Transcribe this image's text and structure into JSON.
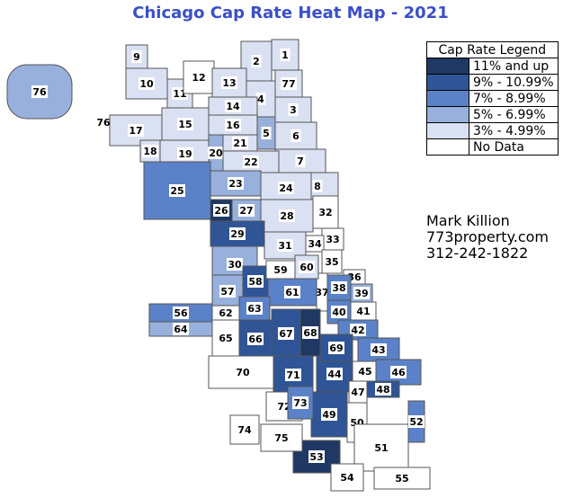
{
  "title": "Chicago Cap Rate Heat Map - 2021",
  "legend": {
    "title": "Cap Rate Legend",
    "items": [
      {
        "label": "11% and up",
        "color": "#1f3864"
      },
      {
        "label": "9% - 10.99%",
        "color": "#2f5597"
      },
      {
        "label": "7% - 8.99%",
        "color": "#5b82c8"
      },
      {
        "label": "5% - 6.99%",
        "color": "#98b0dc"
      },
      {
        "label": "3% - 4.99%",
        "color": "#dae1f2"
      },
      {
        "label": "No Data",
        "color": "#ffffff"
      }
    ]
  },
  "contact": {
    "name": "Mark Killion",
    "website": "773property.com",
    "phone": "312-242-1822"
  },
  "areas": [
    {
      "id": "1",
      "level": "3% - 4.99%"
    },
    {
      "id": "2",
      "level": "3% - 4.99%"
    },
    {
      "id": "3",
      "level": "3% - 4.99%"
    },
    {
      "id": "4",
      "level": "3% - 4.99%"
    },
    {
      "id": "5",
      "level": "5% - 6.99%"
    },
    {
      "id": "6",
      "level": "3% - 4.99%"
    },
    {
      "id": "7",
      "level": "3% - 4.99%"
    },
    {
      "id": "8",
      "level": "3% - 4.99%"
    },
    {
      "id": "9",
      "level": "3% - 4.99%"
    },
    {
      "id": "10",
      "level": "3% - 4.99%"
    },
    {
      "id": "11",
      "level": "3% - 4.99%"
    },
    {
      "id": "12",
      "level": "No Data"
    },
    {
      "id": "13",
      "level": "3% - 4.99%"
    },
    {
      "id": "14",
      "level": "3% - 4.99%"
    },
    {
      "id": "15",
      "level": "3% - 4.99%"
    },
    {
      "id": "16",
      "level": "3% - 4.99%"
    },
    {
      "id": "17",
      "level": "3% - 4.99%"
    },
    {
      "id": "18",
      "level": "3% - 4.99%"
    },
    {
      "id": "19",
      "level": "3% - 4.99%"
    },
    {
      "id": "20",
      "level": "5% - 6.99%"
    },
    {
      "id": "21",
      "level": "3% - 4.99%"
    },
    {
      "id": "22",
      "level": "3% - 4.99%"
    },
    {
      "id": "23",
      "level": "5% - 6.99%"
    },
    {
      "id": "24",
      "level": "3% - 4.99%"
    },
    {
      "id": "25",
      "level": "7% - 8.99%"
    },
    {
      "id": "26",
      "level": "11% and up"
    },
    {
      "id": "27",
      "level": "5% - 6.99%"
    },
    {
      "id": "28",
      "level": "3% - 4.99%"
    },
    {
      "id": "29",
      "level": "9% - 10.99%"
    },
    {
      "id": "30",
      "level": "5% - 6.99%"
    },
    {
      "id": "31",
      "level": "3% - 4.99%"
    },
    {
      "id": "32",
      "level": "No Data"
    },
    {
      "id": "33",
      "level": "No Data"
    },
    {
      "id": "34",
      "level": "No Data"
    },
    {
      "id": "35",
      "level": "No Data"
    },
    {
      "id": "36",
      "level": "No Data"
    },
    {
      "id": "37",
      "level": "No Data"
    },
    {
      "id": "38",
      "level": "7% - 8.99%"
    },
    {
      "id": "39",
      "level": "5% - 6.99%"
    },
    {
      "id": "40",
      "level": "7% - 8.99%"
    },
    {
      "id": "41",
      "level": "No Data"
    },
    {
      "id": "42",
      "level": "7% - 8.99%"
    },
    {
      "id": "43",
      "level": "7% - 8.99%"
    },
    {
      "id": "44",
      "level": "9% - 10.99%"
    },
    {
      "id": "45",
      "level": "No Data"
    },
    {
      "id": "46",
      "level": "7% - 8.99%"
    },
    {
      "id": "47",
      "level": "No Data"
    },
    {
      "id": "48",
      "level": "9% - 10.99%"
    },
    {
      "id": "49",
      "level": "9% - 10.99%"
    },
    {
      "id": "50",
      "level": "No Data"
    },
    {
      "id": "51",
      "level": "No Data"
    },
    {
      "id": "52",
      "level": "7% - 8.99%"
    },
    {
      "id": "53",
      "level": "11% and up"
    },
    {
      "id": "54",
      "level": "No Data"
    },
    {
      "id": "55",
      "level": "No Data"
    },
    {
      "id": "56",
      "level": "7% - 8.99%"
    },
    {
      "id": "57",
      "level": "5% - 6.99%"
    },
    {
      "id": "58",
      "level": "9% - 10.99%"
    },
    {
      "id": "59",
      "level": "No Data"
    },
    {
      "id": "60",
      "level": "3% - 4.99%"
    },
    {
      "id": "61",
      "level": "7% - 8.99%"
    },
    {
      "id": "62",
      "level": "No Data"
    },
    {
      "id": "63",
      "level": "7% - 8.99%"
    },
    {
      "id": "64",
      "level": "5% - 6.99%"
    },
    {
      "id": "65",
      "level": "No Data"
    },
    {
      "id": "66",
      "level": "9% - 10.99%"
    },
    {
      "id": "67",
      "level": "9% - 10.99%"
    },
    {
      "id": "68",
      "level": "11% and up"
    },
    {
      "id": "69",
      "level": "9% - 10.99%"
    },
    {
      "id": "70",
      "level": "No Data"
    },
    {
      "id": "71",
      "level": "9% - 10.99%"
    },
    {
      "id": "72",
      "level": "No Data"
    },
    {
      "id": "73",
      "level": "7% - 8.99%"
    },
    {
      "id": "74",
      "level": "No Data"
    },
    {
      "id": "75",
      "level": "No Data"
    },
    {
      "id": "76",
      "level": "5% - 6.99%"
    },
    {
      "id": "77",
      "level": "3% - 4.99%"
    }
  ]
}
